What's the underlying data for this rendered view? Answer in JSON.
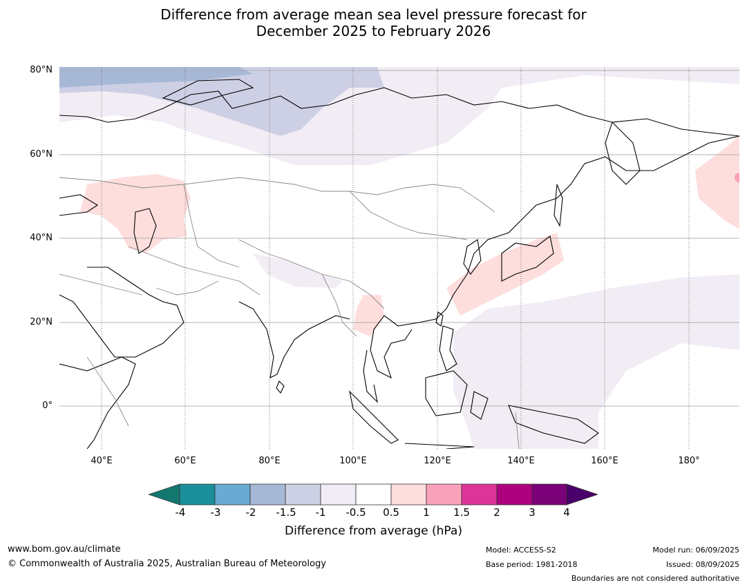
{
  "title": {
    "line1": "Difference from average mean sea level pressure forecast for",
    "line2": "December 2025 to February 2026"
  },
  "map": {
    "lat_labels": [
      "80°N",
      "60°N",
      "40°N",
      "20°N",
      "0°"
    ],
    "lon_labels": [
      "40°E",
      "60°E",
      "80°E",
      "100°E",
      "120°E",
      "140°E",
      "160°E",
      "180°"
    ]
  },
  "colorbar": {
    "ticks": [
      "-4",
      "-3",
      "-2",
      "-1.5",
      "-1",
      "-0.5",
      "0.5",
      "1",
      "1.5",
      "2",
      "3",
      "4"
    ],
    "colors": [
      "#127870",
      "#1a8f99",
      "#69aad2",
      "#a6b8d6",
      "#cdd0e4",
      "#f2ecf5",
      "#ffffff",
      "#fedddd",
      "#f9a1bb",
      "#dd3497",
      "#ae017e",
      "#7a0177",
      "#4a006a"
    ],
    "label": "Difference from average (hPa)"
  },
  "footer": {
    "website": "www.bom.gov.au/climate",
    "copyright": "© Commonwealth of Australia 2025, Australian Bureau of Meteorology",
    "model": "Model: ACCESS-S2",
    "base_period": "Base period: 1981-2018",
    "model_run": "Model run: 06/09/2025",
    "issued": "Issued: 08/09/2025",
    "disclaimer": "Boundaries are not considered authoritative"
  }
}
